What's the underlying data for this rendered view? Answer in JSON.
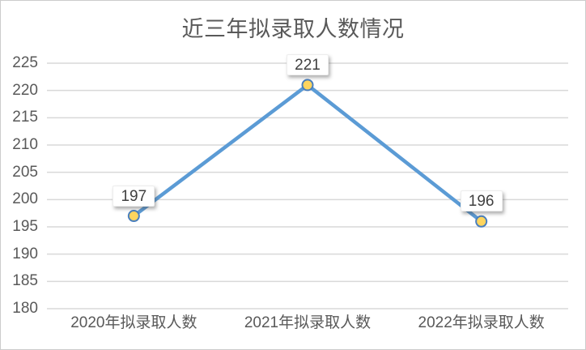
{
  "chart_data": {
    "type": "line",
    "title": "近三年拟录取人数情况",
    "categories": [
      "2020年拟录取人数",
      "2021年拟录取人数",
      "2022年拟录取人数"
    ],
    "values": [
      197,
      221,
      196
    ],
    "data_labels": [
      "197",
      "221",
      "196"
    ],
    "ylim": [
      180,
      225
    ],
    "yticks": [
      225,
      220,
      215,
      210,
      205,
      200,
      195,
      190,
      185,
      180
    ],
    "xlabel": "",
    "ylabel": "",
    "grid": "horizontal",
    "legend": "none",
    "colors": {
      "line": "#5B9BD5",
      "marker_fill": "#FFD55E",
      "marker_stroke": "#4A7FBE",
      "gridline": "#D9D9D9",
      "axis_text": "#595959",
      "data_label_text": "#404040",
      "frame_border": "#CCCCCC",
      "background": "#FFFFFF"
    }
  }
}
